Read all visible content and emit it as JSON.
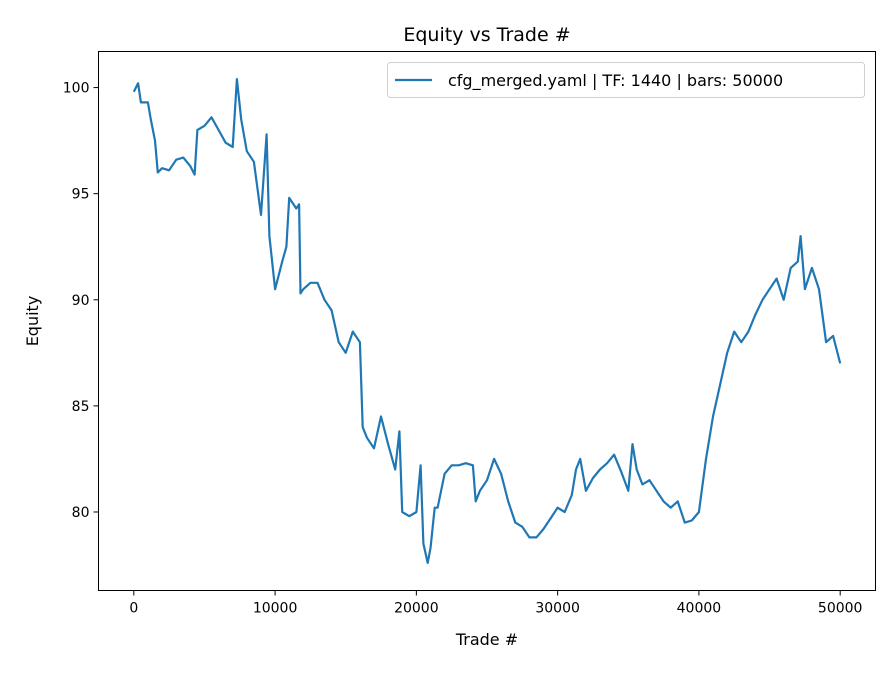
{
  "chart_data": {
    "type": "line",
    "title": "Equity vs Trade #",
    "xlabel": "Trade #",
    "ylabel": "Equity",
    "xlim": [
      -2500,
      52500
    ],
    "ylim": [
      76.3,
      101.7
    ],
    "xticks": [
      0,
      10000,
      20000,
      30000,
      40000,
      50000
    ],
    "yticks": [
      80,
      85,
      90,
      95,
      100
    ],
    "grid": false,
    "legend_position": "top-right",
    "series": [
      {
        "name": "cfg_merged.yaml | TF: 1440 | bars: 50000",
        "color": "#1f77b4",
        "x": [
          0,
          300,
          500,
          1000,
          1200,
          1500,
          1700,
          2000,
          2500,
          3000,
          3500,
          4000,
          4300,
          4500,
          5000,
          5500,
          6000,
          6500,
          7000,
          7300,
          7600,
          8000,
          8500,
          9000,
          9400,
          9600,
          10000,
          10500,
          10800,
          11000,
          11500,
          11700,
          11800,
          12000,
          12500,
          13000,
          13500,
          14000,
          14500,
          15000,
          15500,
          16000,
          16200,
          16500,
          17000,
          17500,
          18000,
          18500,
          18800,
          19000,
          19500,
          20000,
          20300,
          20500,
          20800,
          21000,
          21300,
          21500,
          22000,
          22500,
          23000,
          23500,
          24000,
          24200,
          24500,
          25000,
          25500,
          26000,
          26500,
          27000,
          27500,
          28000,
          28500,
          29000,
          29500,
          30000,
          30500,
          31000,
          31300,
          31600,
          32000,
          32500,
          33000,
          33500,
          34000,
          34500,
          35000,
          35300,
          35600,
          36000,
          36500,
          37000,
          37500,
          38000,
          38500,
          39000,
          39500,
          40000,
          40500,
          41000,
          41500,
          42000,
          42500,
          43000,
          43500,
          44000,
          44500,
          45000,
          45500,
          46000,
          46500,
          47000,
          47200,
          47500,
          48000,
          48500,
          49000,
          49500,
          50000
        ],
        "y": [
          99.8,
          100.2,
          99.3,
          99.3,
          98.5,
          97.5,
          96.0,
          96.2,
          96.1,
          96.6,
          96.7,
          96.3,
          95.9,
          98.0,
          98.2,
          98.6,
          98.0,
          97.4,
          97.2,
          100.4,
          98.5,
          97.0,
          96.5,
          94.0,
          97.8,
          93.0,
          90.5,
          91.8,
          92.5,
          94.8,
          94.3,
          94.5,
          90.3,
          90.5,
          90.8,
          90.8,
          90.0,
          89.5,
          88.0,
          87.5,
          88.5,
          88.0,
          84.0,
          83.5,
          83.0,
          84.5,
          83.2,
          82.0,
          83.8,
          80.0,
          79.8,
          80.0,
          82.2,
          78.5,
          77.6,
          78.3,
          80.2,
          80.2,
          81.8,
          82.2,
          82.2,
          82.3,
          82.2,
          80.5,
          81.0,
          81.5,
          82.5,
          81.8,
          80.5,
          79.5,
          79.3,
          78.8,
          78.8,
          79.2,
          79.7,
          80.2,
          80.0,
          80.8,
          82.0,
          82.5,
          81.0,
          81.6,
          82.0,
          82.3,
          82.7,
          81.9,
          81.0,
          83.2,
          82.0,
          81.3,
          81.5,
          81.0,
          80.5,
          80.2,
          80.5,
          79.5,
          79.6,
          80.0,
          82.5,
          84.5,
          86.0,
          87.5,
          88.5,
          88.0,
          88.5,
          89.3,
          90.0,
          90.5,
          91.0,
          90.0,
          91.5,
          91.8,
          93.0,
          90.5,
          91.5,
          90.5,
          88.0,
          88.3,
          87.0
        ]
      }
    ]
  }
}
